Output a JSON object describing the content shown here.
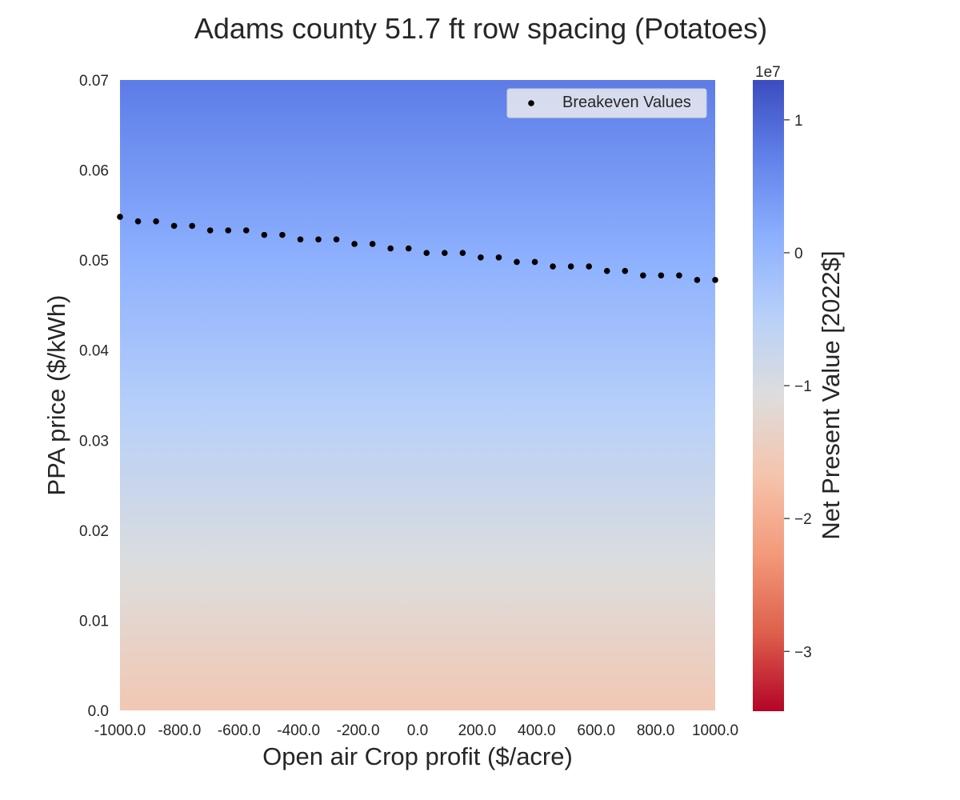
{
  "chart_data": {
    "type": "heatmap",
    "title": "Adams county 51.7 ft row spacing (Potatoes)",
    "xlabel": "Open air Crop profit ($/acre)",
    "ylabel": "PPA price ($/kWh)",
    "xlim": [
      -1000,
      1000
    ],
    "ylim": [
      0,
      0.07
    ],
    "x_ticks": [
      "-1000.0",
      "-800.0",
      "-600.0",
      "-400.0",
      "-200.0",
      "0.0",
      "200.0",
      "400.0",
      "600.0",
      "800.0",
      "1000.0"
    ],
    "y_ticks": [
      "0.0",
      "0.01",
      "0.02",
      "0.03",
      "0.04",
      "0.05",
      "0.06",
      "0.07"
    ],
    "grid": false,
    "colorbar": {
      "label": "Net Present Value [2022$]",
      "offset_text": "1e7",
      "colormap": "coolwarm_r",
      "range": [
        -3.45,
        1.3
      ],
      "ticks": [
        "−3",
        "−2",
        "−1",
        "0",
        "1"
      ],
      "tick_values": [
        -3,
        -2,
        -1,
        0,
        1
      ]
    },
    "heatmap_npv_range_1e7": {
      "bottom": -1.6,
      "top": 0.78
    },
    "legend": {
      "placement": "top-right",
      "entries": [
        "Breakeven Values"
      ]
    },
    "series": [
      {
        "name": "Breakeven Values",
        "type": "scatter",
        "x": [
          -1000,
          -939.4,
          -878.8,
          -818.2,
          -757.6,
          -697.0,
          -636.4,
          -575.8,
          -515.2,
          -454.5,
          -393.9,
          -333.3,
          -272.7,
          -212.1,
          -151.5,
          -90.9,
          -30.3,
          30.3,
          90.9,
          151.5,
          212.1,
          272.7,
          333.3,
          393.9,
          454.5,
          515.2,
          575.8,
          636.4,
          697.0,
          757.6,
          818.2,
          878.8,
          939.4,
          1000
        ],
        "y": [
          0.0548,
          0.0543,
          0.0543,
          0.0538,
          0.0538,
          0.0533,
          0.0533,
          0.0533,
          0.0528,
          0.0528,
          0.0523,
          0.0523,
          0.0523,
          0.0518,
          0.0518,
          0.0513,
          0.0513,
          0.0508,
          0.0508,
          0.0508,
          0.0503,
          0.0503,
          0.0498,
          0.0498,
          0.0493,
          0.0493,
          0.0493,
          0.0488,
          0.0488,
          0.0483,
          0.0483,
          0.0483,
          0.0478,
          0.0478
        ]
      }
    ]
  }
}
